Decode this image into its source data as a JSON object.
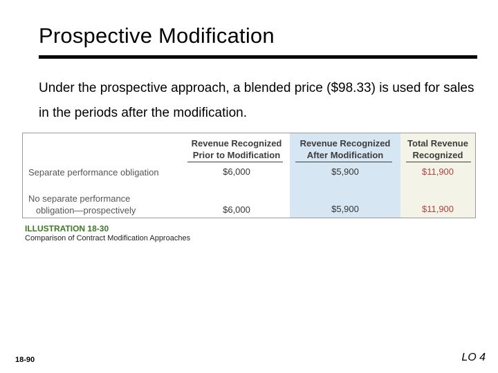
{
  "slide": {
    "title": "Prospective Modification",
    "body": "Under the prospective approach, a blended price ($98.33) is used for sales in the periods after the modification."
  },
  "table": {
    "headers": [
      "Revenue Recognized\nPrior to Modification",
      "Revenue Recognized\nAfter Modification",
      "Total Revenue\nRecognized"
    ],
    "rows": [
      {
        "label": "Separate performance obligation",
        "prior": "$6,000",
        "after": "$5,900",
        "total": "$11,900"
      },
      {
        "label": "No separate performance\n   obligation—prospectively",
        "prior": "$6,000",
        "after": "$5,900",
        "total": "$11,900"
      }
    ],
    "colors": {
      "after_column_bg": "#d6e6f3",
      "total_column_bg": "#f4f3e8",
      "total_text": "#b0413e"
    }
  },
  "illustration": {
    "title": "ILLUSTRATION 18-30",
    "caption": "Comparison of Contract Modification Approaches",
    "title_color": "#3b7a22"
  },
  "footer": {
    "page_number": "18-90",
    "lo": "LO 4"
  }
}
